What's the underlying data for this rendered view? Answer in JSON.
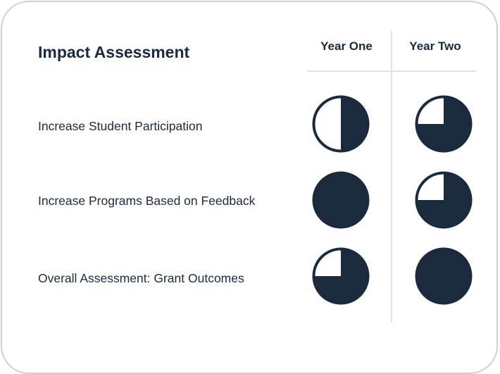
{
  "title": "Impact Assessment",
  "columns": [
    "Year One",
    "Year Two"
  ],
  "colors": {
    "dark": "#1b2a3d",
    "divider": "#e3e3e3",
    "border": "#cfcfcf"
  },
  "rows": [
    {
      "label": "Increase Student Participation",
      "scores": [
        0.5,
        0.75
      ]
    },
    {
      "label": "Increase Programs Based on Feedback",
      "scores": [
        1.0,
        0.75
      ]
    },
    {
      "label": "Overall Assessment: Grant Outcomes",
      "scores": [
        0.75,
        1.0
      ]
    }
  ]
}
